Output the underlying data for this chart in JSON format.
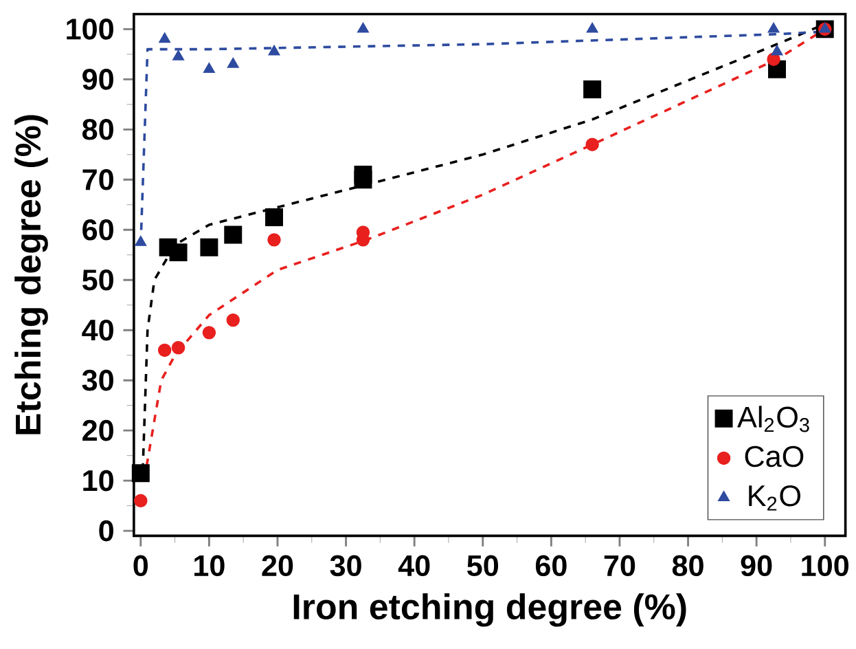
{
  "chart_data": {
    "type": "scatter",
    "xlabel": "Iron etching degree (%)",
    "ylabel": "Etching degree (%)",
    "xlim": [
      -1,
      103
    ],
    "ylim": [
      -1,
      103
    ],
    "xticks": [
      0,
      10,
      20,
      30,
      40,
      50,
      60,
      70,
      80,
      90,
      100
    ],
    "yticks": [
      0,
      10,
      20,
      30,
      40,
      50,
      60,
      70,
      80,
      90,
      100
    ],
    "grid": false,
    "legend": "bottom right",
    "series": [
      {
        "name": "Al$_{2}$O$_{3}$",
        "color": "#000000",
        "marker": "square",
        "x": [
          0,
          4,
          5.5,
          10,
          13.5,
          19.5,
          32.5,
          32.5,
          66,
          93,
          100
        ],
        "values": [
          11.5,
          56.5,
          55.5,
          56.5,
          59,
          62.5,
          70,
          71,
          88,
          92,
          100
        ]
      },
      {
        "name": "CaO",
        "color": "#e8201e",
        "marker": "circle",
        "x": [
          0,
          3.5,
          5.5,
          10,
          13.5,
          19.5,
          32.5,
          32.5,
          66,
          92.5,
          100
        ],
        "values": [
          6,
          36,
          36.5,
          39.5,
          42,
          58,
          58,
          59.5,
          77,
          94,
          100
        ]
      },
      {
        "name": "K$_{2}$O",
        "color": "#2e4ba0",
        "marker": "triangle",
        "x": [
          0,
          3.5,
          5.5,
          10,
          13.5,
          19.5,
          32.5,
          66,
          92.5,
          93,
          100
        ],
        "values": [
          57.5,
          98,
          94.5,
          92,
          93,
          95.5,
          100,
          100,
          100,
          95.5,
          100
        ]
      },
      {
        "type": "line",
        "color": "#000000",
        "marker": "none",
        "line_style": "dashed",
        "x": [
          0.3,
          1,
          2,
          5,
          10,
          20,
          33,
          50,
          66,
          93,
          100
        ],
        "values": [
          12,
          40,
          50,
          57,
          61,
          64.5,
          69,
          75,
          82,
          97,
          101
        ]
      },
      {
        "type": "line",
        "color": "#e8201e",
        "marker": "none",
        "line_style": "dashed",
        "x": [
          0.5,
          2,
          3,
          5,
          10,
          20,
          33,
          50,
          66,
          93,
          100
        ],
        "values": [
          10,
          22,
          30,
          35,
          43,
          52,
          58,
          67,
          77,
          94,
          100
        ]
      },
      {
        "type": "line",
        "color": "#2e4ba0",
        "marker": "none",
        "line_style": "dashed",
        "x": [
          0,
          1,
          10,
          50,
          93,
          100
        ],
        "values": [
          57,
          96,
          96,
          97,
          99,
          99.5
        ]
      }
    ]
  }
}
